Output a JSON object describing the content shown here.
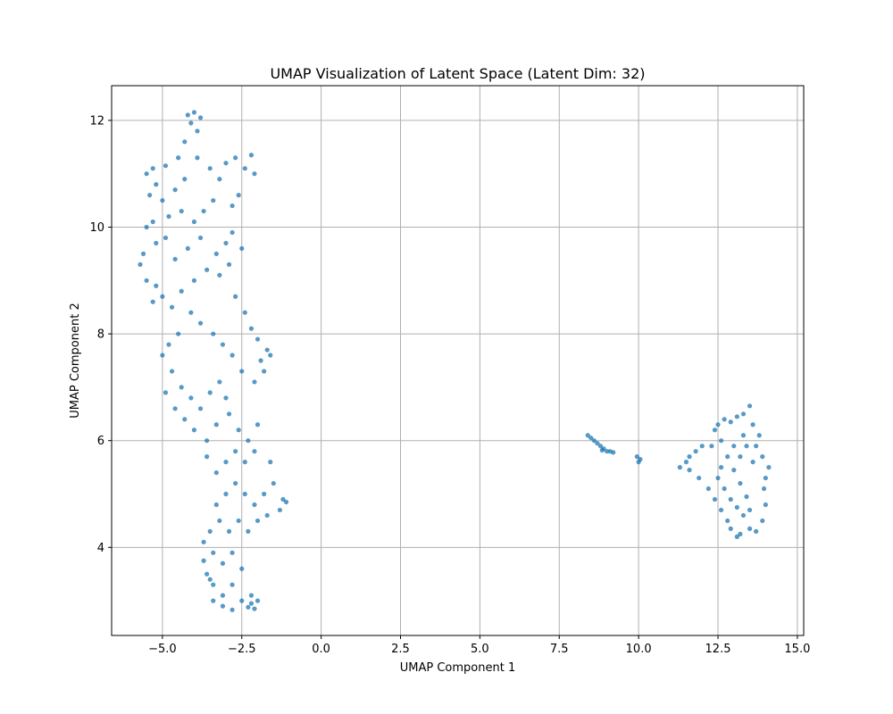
{
  "chart_data": {
    "type": "scatter",
    "title": "UMAP Visualization of Latent Space (Latent Dim: 32)",
    "xlabel": "UMAP Component 1",
    "ylabel": "UMAP Component 2",
    "xlim": [
      -6.6,
      15.2
    ],
    "ylim": [
      2.35,
      12.65
    ],
    "x_ticks": [
      -5.0,
      -2.5,
      0.0,
      2.5,
      5.0,
      7.5,
      10.0,
      12.5,
      15.0
    ],
    "x_tick_labels": [
      "−5.0",
      "−2.5",
      "0.0",
      "2.5",
      "5.0",
      "7.5",
      "10.0",
      "12.5",
      "15.0"
    ],
    "y_ticks": [
      4,
      6,
      8,
      10,
      12
    ],
    "y_tick_labels": [
      "4",
      "6",
      "8",
      "10",
      "12"
    ],
    "grid": true,
    "legend": "none",
    "colors": {
      "point": "#1f77b4",
      "grid": "#b0b0b0"
    },
    "series": [
      {
        "points": [
          [
            -4.2,
            12.1
          ],
          [
            -4.0,
            12.15
          ],
          [
            -3.8,
            12.05
          ],
          [
            -4.1,
            11.95
          ],
          [
            -3.9,
            11.8
          ],
          [
            -4.3,
            11.6
          ],
          [
            -4.5,
            11.3
          ],
          [
            -4.9,
            11.15
          ],
          [
            -5.3,
            11.1
          ],
          [
            -5.5,
            11.0
          ],
          [
            -5.2,
            10.8
          ],
          [
            -5.4,
            10.6
          ],
          [
            -5.0,
            10.5
          ],
          [
            -4.6,
            10.7
          ],
          [
            -4.3,
            10.9
          ],
          [
            -3.9,
            11.3
          ],
          [
            -3.5,
            11.1
          ],
          [
            -3.2,
            10.9
          ],
          [
            -3.0,
            11.2
          ],
          [
            -2.7,
            11.3
          ],
          [
            -2.4,
            11.1
          ],
          [
            -2.2,
            11.35
          ],
          [
            -2.1,
            11.0
          ],
          [
            -2.6,
            10.6
          ],
          [
            -2.8,
            10.4
          ],
          [
            -3.4,
            10.5
          ],
          [
            -3.7,
            10.3
          ],
          [
            -4.0,
            10.1
          ],
          [
            -4.4,
            10.3
          ],
          [
            -4.8,
            10.2
          ],
          [
            -5.3,
            10.1
          ],
          [
            -5.5,
            10.0
          ],
          [
            -5.2,
            9.7
          ],
          [
            -5.6,
            9.5
          ],
          [
            -5.7,
            9.3
          ],
          [
            -5.5,
            9.0
          ],
          [
            -5.2,
            8.9
          ],
          [
            -5.0,
            8.7
          ],
          [
            -5.3,
            8.6
          ],
          [
            -4.7,
            8.5
          ],
          [
            -4.4,
            8.8
          ],
          [
            -4.0,
            9.0
          ],
          [
            -3.6,
            9.2
          ],
          [
            -3.3,
            9.5
          ],
          [
            -3.0,
            9.7
          ],
          [
            -2.8,
            9.9
          ],
          [
            -2.5,
            9.6
          ],
          [
            -2.9,
            9.3
          ],
          [
            -3.2,
            9.1
          ],
          [
            -4.2,
            9.6
          ],
          [
            -4.6,
            9.4
          ],
          [
            -4.9,
            9.8
          ],
          [
            -3.8,
            9.8
          ],
          [
            -2.7,
            8.7
          ],
          [
            -2.4,
            8.4
          ],
          [
            -2.2,
            8.1
          ],
          [
            -2.0,
            7.9
          ],
          [
            -1.7,
            7.7
          ],
          [
            -1.6,
            7.6
          ],
          [
            -1.9,
            7.5
          ],
          [
            -1.8,
            7.3
          ],
          [
            -2.1,
            7.1
          ],
          [
            -2.5,
            7.3
          ],
          [
            -2.8,
            7.6
          ],
          [
            -3.1,
            7.8
          ],
          [
            -3.4,
            8.0
          ],
          [
            -3.8,
            8.2
          ],
          [
            -4.1,
            8.4
          ],
          [
            -4.5,
            8.0
          ],
          [
            -4.8,
            7.8
          ],
          [
            -5.0,
            7.6
          ],
          [
            -4.7,
            7.3
          ],
          [
            -4.4,
            7.0
          ],
          [
            -4.1,
            6.8
          ],
          [
            -3.8,
            6.6
          ],
          [
            -3.5,
            6.9
          ],
          [
            -3.2,
            7.1
          ],
          [
            -3.0,
            6.8
          ],
          [
            -4.9,
            6.9
          ],
          [
            -4.6,
            6.6
          ],
          [
            -4.3,
            6.4
          ],
          [
            -4.0,
            6.2
          ],
          [
            -3.6,
            6.0
          ],
          [
            -3.3,
            6.3
          ],
          [
            -2.9,
            6.5
          ],
          [
            -2.6,
            6.2
          ],
          [
            -2.3,
            6.0
          ],
          [
            -2.0,
            6.3
          ],
          [
            -2.1,
            5.8
          ],
          [
            -2.4,
            5.6
          ],
          [
            -2.7,
            5.8
          ],
          [
            -3.0,
            5.6
          ],
          [
            -3.3,
            5.4
          ],
          [
            -3.6,
            5.7
          ],
          [
            -1.6,
            5.6
          ],
          [
            -1.5,
            5.2
          ],
          [
            -1.8,
            5.0
          ],
          [
            -2.1,
            4.8
          ],
          [
            -2.4,
            5.0
          ],
          [
            -2.7,
            5.2
          ],
          [
            -3.0,
            5.0
          ],
          [
            -3.3,
            4.8
          ],
          [
            -1.2,
            4.9
          ],
          [
            -1.1,
            4.85
          ],
          [
            -1.3,
            4.7
          ],
          [
            -1.7,
            4.6
          ],
          [
            -2.0,
            4.5
          ],
          [
            -2.3,
            4.3
          ],
          [
            -2.6,
            4.5
          ],
          [
            -2.9,
            4.3
          ],
          [
            -3.2,
            4.5
          ],
          [
            -3.5,
            4.3
          ],
          [
            -3.7,
            4.1
          ],
          [
            -3.4,
            3.9
          ],
          [
            -3.1,
            3.7
          ],
          [
            -2.8,
            3.9
          ],
          [
            -2.5,
            3.6
          ],
          [
            -3.6,
            3.5
          ],
          [
            -3.4,
            3.3
          ],
          [
            -3.1,
            3.1
          ],
          [
            -2.8,
            3.3
          ],
          [
            -2.5,
            3.0
          ],
          [
            -2.2,
            3.1
          ],
          [
            -2.0,
            3.0
          ],
          [
            -2.1,
            2.85
          ],
          [
            -2.3,
            2.88
          ],
          [
            -2.8,
            2.83
          ],
          [
            -3.1,
            2.9
          ],
          [
            -3.4,
            3.0
          ],
          [
            -3.5,
            3.4
          ],
          [
            -2.2,
            2.95
          ],
          [
            -3.7,
            3.75
          ]
        ]
      },
      {
        "points": [
          [
            8.4,
            6.1
          ],
          [
            8.5,
            6.05
          ],
          [
            8.6,
            6.0
          ],
          [
            8.7,
            5.95
          ],
          [
            8.8,
            5.9
          ],
          [
            8.9,
            5.85
          ],
          [
            9.0,
            5.8
          ],
          [
            9.1,
            5.8
          ],
          [
            9.2,
            5.78
          ],
          [
            8.85,
            5.82
          ],
          [
            9.95,
            5.7
          ],
          [
            10.0,
            5.6
          ],
          [
            10.05,
            5.65
          ]
        ]
      },
      {
        "points": [
          [
            13.5,
            6.65
          ],
          [
            13.3,
            6.5
          ],
          [
            13.1,
            6.45
          ],
          [
            12.9,
            6.35
          ],
          [
            12.7,
            6.4
          ],
          [
            12.5,
            6.3
          ],
          [
            12.4,
            6.2
          ],
          [
            12.6,
            6.0
          ],
          [
            12.3,
            5.9
          ],
          [
            12.0,
            5.9
          ],
          [
            11.8,
            5.8
          ],
          [
            11.6,
            5.7
          ],
          [
            11.5,
            5.6
          ],
          [
            11.3,
            5.5
          ],
          [
            11.6,
            5.45
          ],
          [
            11.9,
            5.3
          ],
          [
            12.2,
            5.1
          ],
          [
            12.4,
            4.9
          ],
          [
            12.6,
            4.7
          ],
          [
            12.8,
            4.5
          ],
          [
            12.9,
            4.35
          ],
          [
            13.1,
            4.2
          ],
          [
            13.2,
            4.25
          ],
          [
            13.5,
            4.35
          ],
          [
            13.7,
            4.3
          ],
          [
            13.9,
            4.5
          ],
          [
            14.0,
            4.8
          ],
          [
            13.95,
            5.1
          ],
          [
            14.0,
            5.3
          ],
          [
            14.1,
            5.5
          ],
          [
            13.9,
            5.7
          ],
          [
            13.7,
            5.9
          ],
          [
            13.8,
            6.1
          ],
          [
            13.6,
            6.3
          ],
          [
            13.3,
            6.1
          ],
          [
            13.0,
            5.9
          ],
          [
            12.8,
            5.7
          ],
          [
            12.6,
            5.5
          ],
          [
            12.5,
            5.3
          ],
          [
            12.7,
            5.1
          ],
          [
            12.9,
            4.9
          ],
          [
            13.1,
            4.75
          ],
          [
            13.3,
            4.6
          ],
          [
            13.5,
            4.7
          ],
          [
            13.4,
            4.95
          ],
          [
            13.2,
            5.2
          ],
          [
            13.0,
            5.45
          ],
          [
            13.2,
            5.7
          ],
          [
            13.4,
            5.9
          ],
          [
            13.6,
            5.6
          ]
        ]
      }
    ]
  }
}
